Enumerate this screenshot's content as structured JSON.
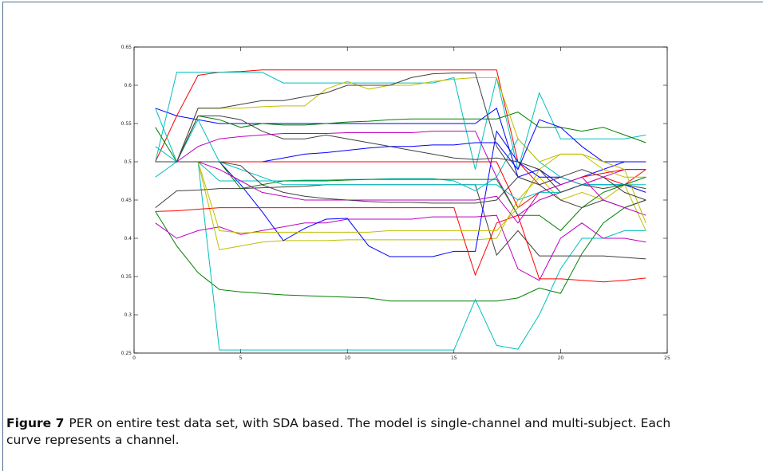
{
  "chart_data": {
    "type": "line",
    "x": [
      1,
      2,
      3,
      4,
      5,
      6,
      7,
      8,
      9,
      10,
      11,
      12,
      13,
      14,
      15,
      16,
      17,
      18,
      19,
      20,
      21,
      22,
      23,
      24
    ],
    "xlim": [
      0,
      25
    ],
    "xticks": [
      0,
      5,
      10,
      15,
      20,
      25
    ],
    "ylim": [
      0.25,
      0.65
    ],
    "yticks": [
      0.25,
      0.3,
      0.35,
      0.4,
      0.45,
      0.5,
      0.55,
      0.6,
      0.65
    ],
    "series": [
      {
        "color": "#0000ff",
        "values": [
          0.57,
          0.56,
          0.555,
          0.55,
          0.55,
          0.55,
          0.55,
          0.55,
          0.55,
          0.55,
          0.55,
          0.55,
          0.55,
          0.55,
          0.55,
          0.55,
          0.57,
          0.48,
          0.49,
          0.47,
          0.48,
          0.49,
          0.5,
          0.5
        ]
      },
      {
        "color": "#008000",
        "values": [
          0.435,
          0.39,
          0.355,
          0.333,
          0.33,
          0.328,
          0.326,
          0.325,
          0.324,
          0.323,
          0.322,
          0.318,
          0.318,
          0.318,
          0.318,
          0.318,
          0.318,
          0.322,
          0.335,
          0.328,
          0.38,
          0.42,
          0.44,
          0.45
        ]
      },
      {
        "color": "#ff0000",
        "values": [
          0.5,
          0.56,
          0.613,
          0.617,
          0.618,
          0.62,
          0.62,
          0.62,
          0.62,
          0.62,
          0.62,
          0.62,
          0.62,
          0.62,
          0.62,
          0.62,
          0.62,
          0.5,
          0.47,
          0.48,
          0.47,
          0.48,
          0.47,
          0.49
        ]
      },
      {
        "color": "#00bfbf",
        "values": [
          0.5,
          0.617,
          0.617,
          0.617,
          0.617,
          0.617,
          0.603,
          0.603,
          0.603,
          0.603,
          0.603,
          0.603,
          0.603,
          0.603,
          0.61,
          0.49,
          0.61,
          0.49,
          0.59,
          0.53,
          0.53,
          0.53,
          0.53,
          0.535
        ]
      },
      {
        "color": "#00bfbf",
        "values": [
          0.52,
          0.5,
          0.5,
          0.254,
          0.254,
          0.254,
          0.254,
          0.254,
          0.254,
          0.254,
          0.254,
          0.254,
          0.254,
          0.254,
          0.254,
          0.32,
          0.26,
          0.255,
          0.3,
          0.36,
          0.4,
          0.4,
          0.41,
          0.41
        ]
      },
      {
        "color": "#bf00bf",
        "values": [
          0.42,
          0.4,
          0.41,
          0.415,
          0.405,
          0.41,
          0.415,
          0.42,
          0.42,
          0.425,
          0.425,
          0.425,
          0.425,
          0.428,
          0.428,
          0.428,
          0.43,
          0.36,
          0.345,
          0.4,
          0.42,
          0.4,
          0.4,
          0.395
        ]
      },
      {
        "color": "#bfbf00",
        "values": [
          0.5,
          0.5,
          0.5,
          0.385,
          0.39,
          0.395,
          0.397,
          0.397,
          0.397,
          0.398,
          0.398,
          0.398,
          0.398,
          0.398,
          0.398,
          0.398,
          0.4,
          0.45,
          0.48,
          0.45,
          0.46,
          0.45,
          0.47,
          0.41
        ]
      },
      {
        "color": "#404040",
        "values": [
          0.44,
          0.462,
          0.463,
          0.465,
          0.465,
          0.466,
          0.467,
          0.468,
          0.47,
          0.47,
          0.47,
          0.47,
          0.47,
          0.47,
          0.47,
          0.47,
          0.378,
          0.41,
          0.377,
          0.377,
          0.377,
          0.377,
          0.375,
          0.373
        ]
      },
      {
        "color": "#0000ff",
        "values": [
          0.5,
          0.5,
          0.5,
          0.5,
          0.47,
          0.435,
          0.397,
          0.413,
          0.425,
          0.426,
          0.39,
          0.376,
          0.376,
          0.376,
          0.383,
          0.383,
          0.54,
          0.5,
          0.48,
          0.48,
          0.47,
          0.47,
          0.47,
          0.46
        ]
      },
      {
        "color": "#008000",
        "values": [
          0.545,
          0.5,
          0.56,
          0.555,
          0.545,
          0.55,
          0.548,
          0.548,
          0.55,
          0.552,
          0.553,
          0.555,
          0.556,
          0.556,
          0.556,
          0.556,
          0.556,
          0.565,
          0.545,
          0.545,
          0.54,
          0.545,
          0.535,
          0.525
        ]
      },
      {
        "color": "#ff0000",
        "values": [
          0.435,
          0.436,
          0.438,
          0.44,
          0.44,
          0.44,
          0.44,
          0.44,
          0.44,
          0.44,
          0.44,
          0.44,
          0.44,
          0.44,
          0.44,
          0.352,
          0.42,
          0.43,
          0.347,
          0.347,
          0.345,
          0.343,
          0.345,
          0.348
        ]
      },
      {
        "color": "#00bfbf",
        "values": [
          0.48,
          0.5,
          0.5,
          0.475,
          0.475,
          0.475,
          0.475,
          0.476,
          0.476,
          0.477,
          0.477,
          0.478,
          0.478,
          0.478,
          0.475,
          0.462,
          0.48,
          0.53,
          0.5,
          0.48,
          0.47,
          0.47,
          0.47,
          0.48
        ]
      },
      {
        "color": "#bf00bf",
        "values": [
          0.5,
          0.5,
          0.52,
          0.53,
          0.533,
          0.535,
          0.537,
          0.537,
          0.537,
          0.538,
          0.538,
          0.538,
          0.538,
          0.54,
          0.54,
          0.54,
          0.48,
          0.43,
          0.45,
          0.46,
          0.47,
          0.48,
          0.49,
          0.49
        ]
      },
      {
        "color": "#bfbf00",
        "values": [
          0.5,
          0.5,
          0.57,
          0.57,
          0.57,
          0.572,
          0.573,
          0.573,
          0.595,
          0.605,
          0.595,
          0.6,
          0.6,
          0.605,
          0.608,
          0.61,
          0.61,
          0.53,
          0.5,
          0.51,
          0.51,
          0.49,
          0.48,
          0.48
        ]
      },
      {
        "color": "#404040",
        "values": [
          0.5,
          0.5,
          0.57,
          0.57,
          0.575,
          0.58,
          0.58,
          0.585,
          0.59,
          0.6,
          0.6,
          0.6,
          0.61,
          0.615,
          0.616,
          0.616,
          0.52,
          0.48,
          0.47,
          0.45,
          0.44,
          0.45,
          0.44,
          0.45
        ]
      },
      {
        "color": "#0000ff",
        "values": [
          0.5,
          0.5,
          0.5,
          0.5,
          0.5,
          0.5,
          0.505,
          0.51,
          0.512,
          0.515,
          0.518,
          0.52,
          0.52,
          0.522,
          0.522,
          0.525,
          0.525,
          0.49,
          0.555,
          0.545,
          0.52,
          0.5,
          0.5,
          0.5
        ]
      },
      {
        "color": "#008000",
        "values": [
          0.5,
          0.5,
          0.5,
          0.5,
          0.465,
          0.47,
          0.475,
          0.475,
          0.475,
          0.476,
          0.477,
          0.477,
          0.477,
          0.477,
          0.477,
          0.477,
          0.477,
          0.43,
          0.43,
          0.41,
          0.44,
          0.46,
          0.47,
          0.48
        ]
      },
      {
        "color": "#ff0000",
        "values": [
          0.5,
          0.5,
          0.5,
          0.5,
          0.5,
          0.5,
          0.5,
          0.5,
          0.5,
          0.5,
          0.5,
          0.5,
          0.5,
          0.5,
          0.5,
          0.5,
          0.5,
          0.44,
          0.46,
          0.47,
          0.48,
          0.485,
          0.49,
          0.49
        ]
      },
      {
        "color": "#00bfbf",
        "values": [
          0.57,
          0.5,
          0.555,
          0.5,
          0.49,
          0.48,
          0.47,
          0.47,
          0.47,
          0.47,
          0.47,
          0.47,
          0.47,
          0.47,
          0.47,
          0.47,
          0.47,
          0.45,
          0.46,
          0.46,
          0.47,
          0.47,
          0.47,
          0.47
        ]
      },
      {
        "color": "#bf00bf",
        "values": [
          0.5,
          0.5,
          0.5,
          0.49,
          0.475,
          0.46,
          0.455,
          0.45,
          0.45,
          0.45,
          0.45,
          0.45,
          0.45,
          0.45,
          0.45,
          0.45,
          0.455,
          0.42,
          0.46,
          0.47,
          0.48,
          0.45,
          0.44,
          0.43
        ]
      },
      {
        "color": "#bfbf00",
        "values": [
          0.5,
          0.5,
          0.5,
          0.41,
          0.407,
          0.408,
          0.408,
          0.408,
          0.408,
          0.408,
          0.408,
          0.41,
          0.41,
          0.41,
          0.41,
          0.41,
          0.41,
          0.44,
          0.49,
          0.51,
          0.51,
          0.5,
          0.49,
          0.42
        ]
      },
      {
        "color": "#404040",
        "values": [
          0.5,
          0.5,
          0.56,
          0.56,
          0.555,
          0.54,
          0.53,
          0.53,
          0.535,
          0.53,
          0.525,
          0.52,
          0.515,
          0.51,
          0.505,
          0.503,
          0.505,
          0.5,
          0.49,
          0.46,
          0.47,
          0.465,
          0.47,
          0.465
        ]
      },
      {
        "color": "#404040",
        "values": [
          0.5,
          0.5,
          0.5,
          0.5,
          0.495,
          0.47,
          0.46,
          0.455,
          0.452,
          0.45,
          0.448,
          0.447,
          0.447,
          0.446,
          0.446,
          0.446,
          0.45,
          0.48,
          0.47,
          0.48,
          0.49,
          0.48,
          0.46,
          0.45
        ]
      }
    ],
    "caption": {
      "label": "Figure 7",
      "text": "PER on entire test data set, with SDA based. The model is single-channel and multi-subject. Each curve represents a channel."
    }
  }
}
